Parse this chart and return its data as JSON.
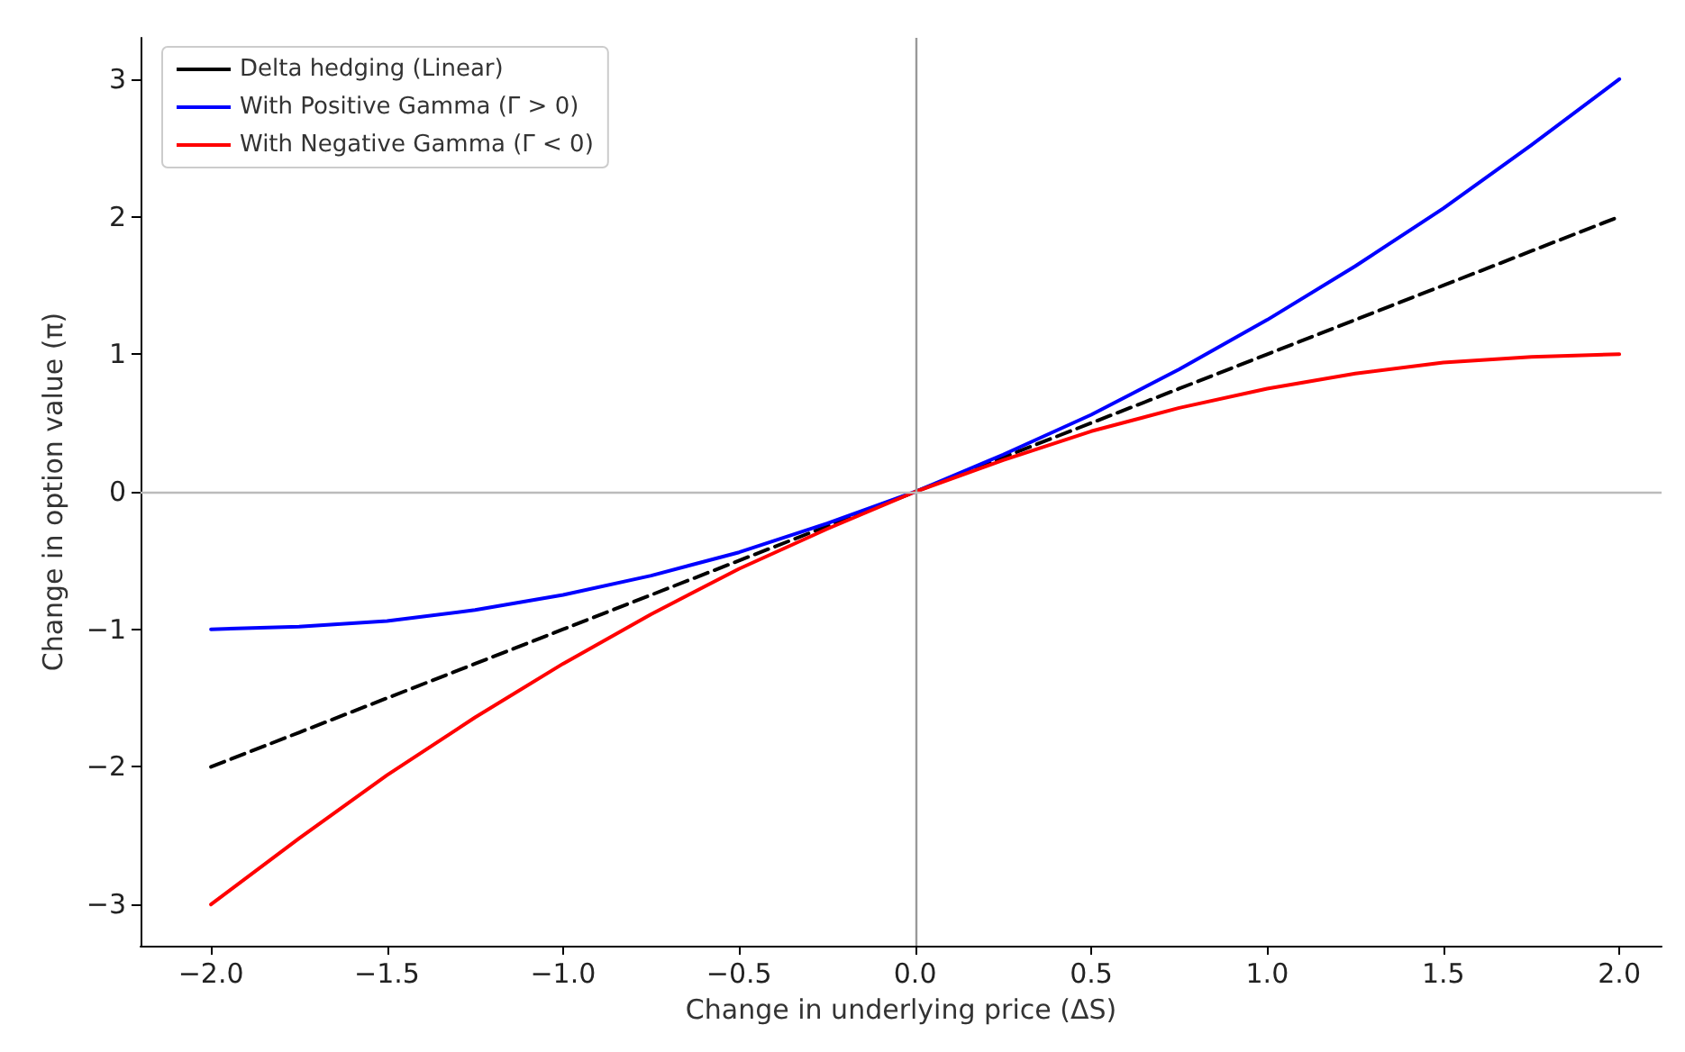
{
  "chart_data": {
    "type": "line",
    "xlabel": "Change in underlying price (ΔS)",
    "ylabel": "Change in option value (π)",
    "x": [
      -2,
      -1.75,
      -1.5,
      -1.25,
      -1,
      -0.75,
      -0.5,
      -0.25,
      0,
      0.25,
      0.5,
      0.75,
      1,
      1.25,
      1.5,
      1.75,
      2
    ],
    "series": [
      {
        "name": "Delta hedging (Linear)",
        "color": "#000000",
        "line_style": "dashed",
        "values": [
          -2,
          -1.75,
          -1.5,
          -1.25,
          -1,
          -0.75,
          -0.5,
          -0.25,
          0,
          0.25,
          0.5,
          0.75,
          1,
          1.25,
          1.5,
          1.75,
          2
        ]
      },
      {
        "name": "With Positive Gamma (Γ > 0)",
        "color": "#0000ff",
        "line_style": "solid",
        "values": [
          -1,
          -0.98,
          -0.94,
          -0.86,
          -0.75,
          -0.61,
          -0.44,
          -0.23,
          0,
          0.27,
          0.56,
          0.89,
          1.25,
          1.64,
          2.06,
          2.52,
          3
        ]
      },
      {
        "name": "With Negative Gamma (Γ < 0)",
        "color": "#ff0000",
        "line_style": "solid",
        "values": [
          -3,
          -2.52,
          -2.06,
          -1.64,
          -1.25,
          -0.89,
          -0.56,
          -0.27,
          0,
          0.23,
          0.44,
          0.61,
          0.75,
          0.86,
          0.94,
          0.98,
          1
        ]
      }
    ],
    "xlim": [
      -2.2,
      2.12
    ],
    "ylim": [
      -3.3,
      3.3
    ],
    "xticks": [
      {
        "value": -2,
        "label": "−2.0"
      },
      {
        "value": -1.5,
        "label": "−1.5"
      },
      {
        "value": -1,
        "label": "−1.0"
      },
      {
        "value": -0.5,
        "label": "−0.5"
      },
      {
        "value": 0,
        "label": "0.0"
      },
      {
        "value": 0.5,
        "label": "0.5"
      },
      {
        "value": 1,
        "label": "1.0"
      },
      {
        "value": 1.5,
        "label": "1.5"
      },
      {
        "value": 2,
        "label": "2.0"
      }
    ],
    "yticks": [
      {
        "value": -3,
        "label": "−3"
      },
      {
        "value": -2,
        "label": "−2"
      },
      {
        "value": -1,
        "label": "−1"
      },
      0,
      1,
      2,
      3
    ],
    "ref_lines": [
      {
        "axis": "x",
        "value": 0,
        "label": null,
        "color": "#999999"
      },
      {
        "axis": "y",
        "value": 0,
        "label": null,
        "color": "#bbbbbb"
      }
    ],
    "grid": false,
    "legend": "top left",
    "marker": "none"
  }
}
